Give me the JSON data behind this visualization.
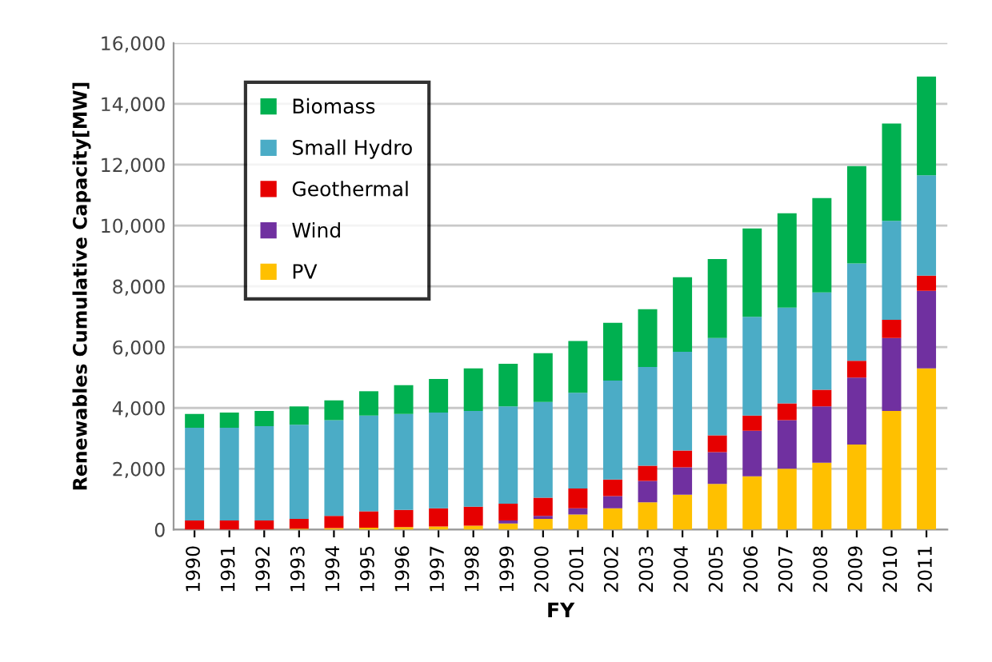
{
  "chart_data": {
    "type": "bar",
    "stacked": true,
    "xlabel": "FY",
    "ylabel": "Renewables Cumulative Capacity[MW]",
    "categories": [
      "1990",
      "1991",
      "1992",
      "1993",
      "1994",
      "1995",
      "1996",
      "1997",
      "1998",
      "1999",
      "2000",
      "2001",
      "2002",
      "2003",
      "2004",
      "2005",
      "2006",
      "2007",
      "2008",
      "2009",
      "2010",
      "2011"
    ],
    "series": [
      {
        "name": "PV",
        "color": "#ffc000",
        "values": [
          0,
          0,
          0,
          30,
          50,
          60,
          80,
          100,
          130,
          200,
          350,
          500,
          700,
          900,
          1150,
          1500,
          1750,
          2000,
          2200,
          2800,
          3900,
          5300
        ]
      },
      {
        "name": "Wind",
        "color": "#7030a0",
        "values": [
          0,
          0,
          0,
          0,
          0,
          0,
          0,
          null,
          null,
          100,
          100,
          200,
          400,
          700,
          900,
          1050,
          1500,
          1600,
          1850,
          2200,
          2400,
          2550
        ]
      },
      {
        "name": "Geothermal",
        "color": "#e60000",
        "values": [
          300,
          300,
          300,
          320,
          400,
          540,
          570,
          600,
          620,
          550,
          600,
          650,
          550,
          500,
          550,
          550,
          500,
          550,
          550,
          550,
          600,
          500
        ]
      },
      {
        "name": "Small Hydro",
        "color": "#4bacc6",
        "values": [
          3050,
          3050,
          3100,
          3100,
          3150,
          3150,
          3150,
          3150,
          3150,
          3200,
          3150,
          3150,
          3250,
          3250,
          3250,
          3200,
          3250,
          3150,
          3200,
          3200,
          3250,
          3300
        ]
      },
      {
        "name": "Biomass",
        "color": "#00b050",
        "values": [
          450,
          500,
          500,
          600,
          650,
          800,
          950,
          1100,
          1400,
          1400,
          1600,
          1700,
          1900,
          1900,
          2450,
          2600,
          2900,
          3100,
          3100,
          3200,
          3200,
          3250
        ]
      }
    ],
    "ylim": [
      0,
      16000
    ],
    "yticks": [
      0,
      {
        "value": 2000,
        "label": "2,000"
      },
      {
        "value": 4000,
        "label": "4,000"
      },
      {
        "value": 6000,
        "label": "6,000"
      },
      {
        "value": 8000,
        "label": "8,000"
      },
      {
        "value": 10000,
        "label": "10,000"
      },
      {
        "value": 12000,
        "label": "12,000"
      },
      {
        "value": 14000,
        "label": "14,000"
      },
      {
        "value": 16000,
        "label": "16,000"
      }
    ],
    "grid": "y",
    "legend": "top left"
  }
}
